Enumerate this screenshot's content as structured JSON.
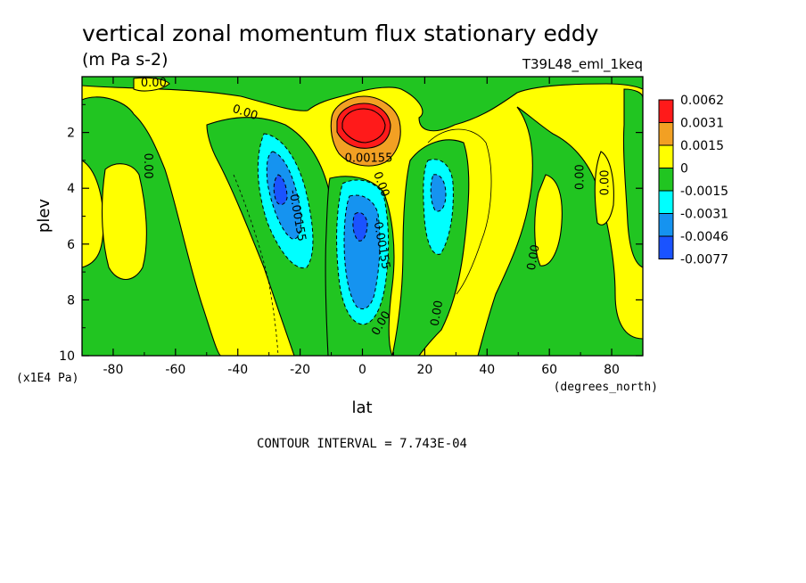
{
  "chart_data": {
    "type": "heatmap",
    "title": "vertical zonal momentum flux stationary eddy",
    "subtitle": "(m Pa s-2)",
    "run_label": "T39L48_eml_1keq",
    "xlabel": "lat",
    "x_units": "(degrees_north)",
    "ylabel": "plev",
    "y_units": "(x1E4 Pa)",
    "xlim": [
      -90,
      90
    ],
    "ylim": [
      10,
      0
    ],
    "x_ticks": [
      "-80",
      "-60",
      "-40",
      "-20",
      "0",
      "20",
      "40",
      "60",
      "80"
    ],
    "y_ticks": [
      "2",
      "4",
      "6",
      "8",
      "10"
    ],
    "contour_interval": "CONTOUR INTERVAL = 7.743E-04",
    "legend": {
      "placement": "right",
      "labels": [
        "0.0062",
        "0.0031",
        "0.0015",
        "0",
        "-0.0015",
        "-0.0031",
        "-0.0046",
        "-0.0077"
      ],
      "colors": [
        "#ff1a1a",
        "#f2a023",
        "#ffff00",
        "#21c521",
        "#00ffff",
        "#1593f0",
        "#1a53ff"
      ]
    },
    "background_color": "#ffff00",
    "contour_labels": [
      {
        "text": "0.00",
        "x": -67,
        "y": 0.35,
        "rotate": 0
      },
      {
        "text": "0.00",
        "x": -38,
        "y": 1.4,
        "rotate": 18
      },
      {
        "text": "0.00",
        "x": -70,
        "y": 3.2,
        "rotate": 90
      },
      {
        "text": "-0.00155",
        "x": -22,
        "y": 5.0,
        "rotate": 80
      },
      {
        "text": "0.00155",
        "x": 2,
        "y": 3.05,
        "rotate": 0
      },
      {
        "text": "0.00",
        "x": 5,
        "y": 3.9,
        "rotate": 70
      },
      {
        "text": "-0.00155",
        "x": 5,
        "y": 6.0,
        "rotate": 80
      },
      {
        "text": "0.00",
        "x": 7,
        "y": 8.9,
        "rotate": -60
      },
      {
        "text": "0.00",
        "x": 25,
        "y": 8.5,
        "rotate": -80
      },
      {
        "text": "0.00",
        "x": 56,
        "y": 6.5,
        "rotate": -80
      },
      {
        "text": "0.00",
        "x": 71,
        "y": 3.6,
        "rotate": -90
      },
      {
        "text": "0.00",
        "x": 79,
        "y": 3.8,
        "rotate": -90
      }
    ]
  }
}
